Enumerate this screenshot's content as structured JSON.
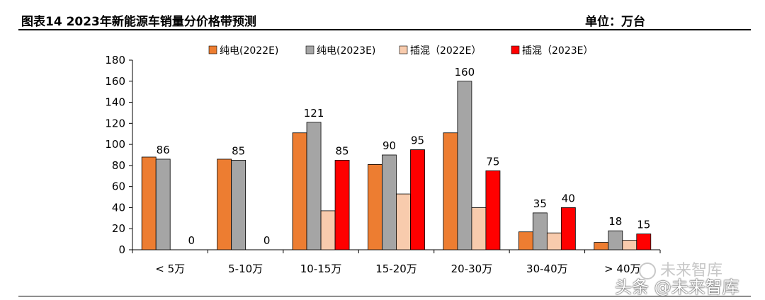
{
  "header": {
    "title": "图表14    2023年新能源车销量分价格带预测",
    "unit": "单位：万台"
  },
  "watermarks": {
    "top": "未来智库",
    "bottom": "头条 @未来智库"
  },
  "chart_data": {
    "type": "bar",
    "title": "2023年新能源车销量分价格带预测",
    "ylabel": "万台",
    "ylim": [
      0,
      180
    ],
    "yticks": [
      0,
      20,
      40,
      60,
      80,
      100,
      120,
      140,
      160,
      180
    ],
    "categories": [
      "< 5万",
      "5-10万",
      "10-15万",
      "15-20万",
      "20-30万",
      "30-40万",
      "> 40万"
    ],
    "series": [
      {
        "name": "纯电(2022E)",
        "color": "#ED7D31",
        "values": [
          88,
          86,
          111,
          81,
          111,
          17,
          7
        ],
        "labels": null
      },
      {
        "name": "纯电(2023E)",
        "color": "#A5A5A5",
        "values": [
          86,
          85,
          121,
          90,
          160,
          35,
          18
        ],
        "labels": [
          86,
          85,
          121,
          90,
          160,
          35,
          18
        ]
      },
      {
        "name": "插混（2022E）",
        "color": "#F8CBAD",
        "values": [
          0,
          0,
          37,
          53,
          40,
          16,
          9
        ],
        "labels": null
      },
      {
        "name": "插混（2023E）",
        "color": "#FF0000",
        "values": [
          0,
          0,
          85,
          95,
          75,
          40,
          15
        ],
        "labels": [
          0,
          0,
          85,
          95,
          75,
          40,
          15
        ]
      }
    ],
    "legend_position": "top",
    "grid": false
  }
}
